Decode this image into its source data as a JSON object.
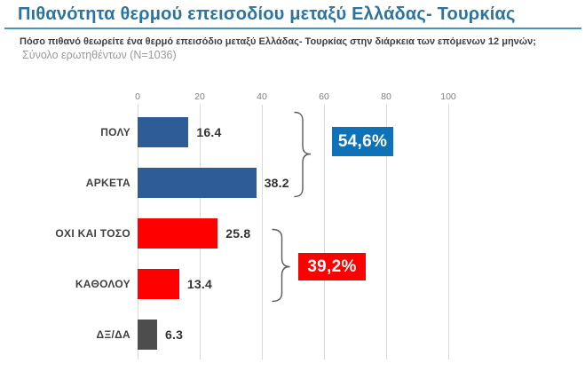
{
  "header": {
    "title": "Πιθανότητα θερμού επεισοδίου μεταξύ Ελλάδας- Τουρκίας",
    "title_color": "#2b73a1",
    "underline_color": "#4796ba",
    "question": "Πόσο πιθανό θεωρείτε ένα θερμό επεισόδιο μεταξύ Ελλάδας- Τουρκίας στην διάρκεια των επόμενων 12 μηνών;",
    "sample": "Σύνολο ερωτηθέντων (N=1036)"
  },
  "chart_data": {
    "type": "bar",
    "orientation": "horizontal",
    "title": "Πιθανότητα θερμού επεισοδίου μεταξύ Ελλάδας- Τουρκίας",
    "categories": [
      "ΠΟΛΥ",
      "ΑΡΚΕΤΑ",
      "ΟΧΙ ΚΑΙ ΤΟΣΟ",
      "ΚΑΘΟΛΟΥ",
      "ΔΞ/ΔΑ"
    ],
    "values": [
      16.4,
      38.2,
      25.8,
      13.4,
      6.3
    ],
    "value_labels": [
      "16.4",
      "38.2",
      "25.8",
      "13.4",
      "6.3"
    ],
    "bar_colors": [
      "#2e5c97",
      "#2e5c97",
      "#fe0000",
      "#fe0000",
      "#4d4d4d"
    ],
    "xlim": [
      0,
      100
    ],
    "x_ticks": [
      "0",
      "20",
      "40",
      "60",
      "80",
      "100"
    ],
    "grid": true,
    "legend": false,
    "gridline_color": "#d9d9d9",
    "tick_label_color": "#7f7f7f",
    "category_label_color": "#404040",
    "value_label_color": "#333333",
    "bracket_color": "#595959",
    "group_callouts": [
      {
        "label": "54,6%",
        "bg": "#0d72b8",
        "text_color": "#ffffff",
        "covers": [
          "ΠΟΛΥ",
          "ΑΡΚΕΤΑ"
        ]
      },
      {
        "label": "39,2%",
        "bg": "#fe0000",
        "text_color": "#ffffff",
        "covers": [
          "ΟΧΙ ΚΑΙ ΤΟΣΟ",
          "ΚΑΘΟΛΟΥ"
        ]
      }
    ]
  }
}
